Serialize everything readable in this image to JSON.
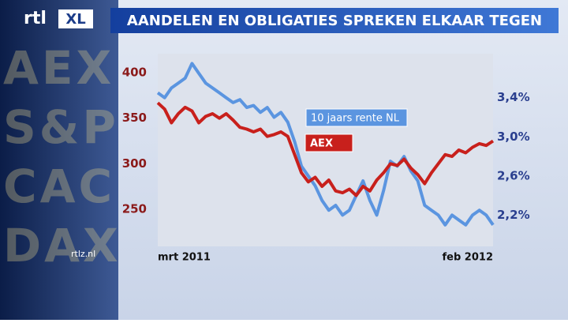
{
  "logo": "rtl",
  "logo_suffix": "XL",
  "watermark": "rtlz.nl",
  "ticker_board": [
    "AEX",
    "S&P",
    "CAC",
    "DAX"
  ],
  "chart_data": {
    "type": "line",
    "title": "AANDELEN EN OBLIGATIES SPREKEN ELKAAR TEGEN",
    "categories": [
      "mrt 2011",
      null,
      null,
      null,
      null,
      null,
      null,
      null,
      null,
      null,
      null,
      null,
      null,
      null,
      null,
      null,
      null,
      null,
      null,
      null,
      null,
      null,
      null,
      null,
      null,
      null,
      null,
      null,
      null,
      null,
      null,
      null,
      null,
      null,
      null,
      null,
      null,
      null,
      null,
      null,
      null,
      null,
      null,
      null,
      null,
      null,
      null,
      null,
      null,
      "feb 2012"
    ],
    "ylim": [
      209,
      421
    ],
    "yticks": [
      250,
      300,
      350,
      400
    ],
    "y2lim": [
      1.88,
      3.85
    ],
    "y2ticks": [
      {
        "value": 2.2,
        "label": "2,2%"
      },
      {
        "value": 2.6,
        "label": "2,6%"
      },
      {
        "value": 3.0,
        "label": "3,0%"
      },
      {
        "value": 3.4,
        "label": "3,4%"
      }
    ],
    "series": [
      {
        "name": "10 jaars rente NL",
        "color": "#5b95e0",
        "axis": "y2",
        "values": [
          3.45,
          3.4,
          3.5,
          3.55,
          3.6,
          3.75,
          3.65,
          3.55,
          3.5,
          3.45,
          3.4,
          3.35,
          3.38,
          3.3,
          3.32,
          3.25,
          3.3,
          3.2,
          3.25,
          3.15,
          2.95,
          2.7,
          2.6,
          2.5,
          2.35,
          2.25,
          2.3,
          2.2,
          2.25,
          2.4,
          2.55,
          2.35,
          2.2,
          2.45,
          2.75,
          2.7,
          2.8,
          2.65,
          2.55,
          2.3,
          2.25,
          2.2,
          2.1,
          2.2,
          2.15,
          2.1,
          2.2,
          2.25,
          2.2,
          2.1
        ]
      },
      {
        "name": "AEX",
        "color": "#c8201c",
        "values": [
          367,
          360,
          345,
          355,
          362,
          358,
          345,
          352,
          355,
          350,
          355,
          348,
          340,
          338,
          335,
          338,
          330,
          332,
          335,
          330,
          310,
          290,
          280,
          285,
          275,
          282,
          270,
          268,
          272,
          265,
          275,
          270,
          282,
          290,
          300,
          298,
          305,
          295,
          288,
          278,
          290,
          300,
          310,
          308,
          315,
          312,
          318,
          322,
          320,
          325
        ]
      }
    ]
  }
}
